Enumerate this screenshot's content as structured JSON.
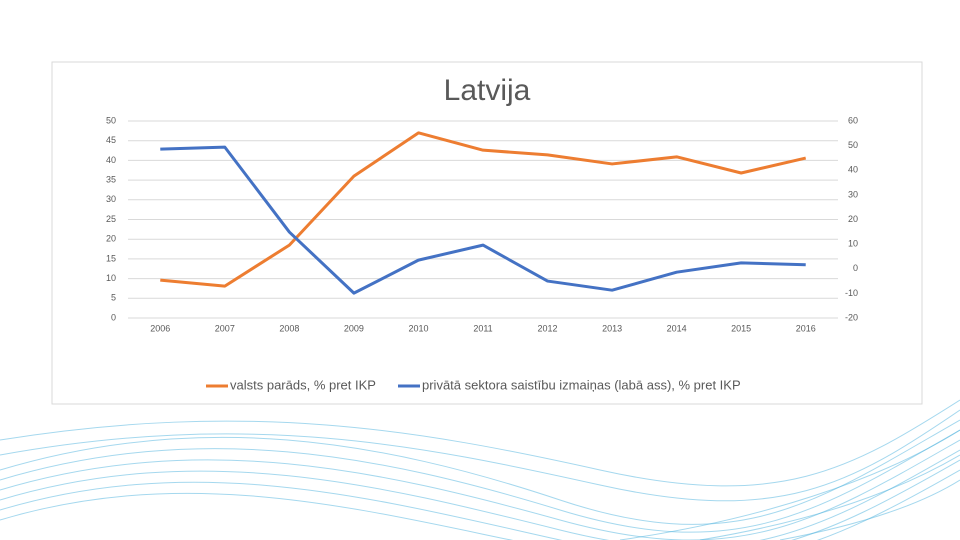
{
  "chart_data": {
    "type": "line",
    "title": "Latvija",
    "categories": [
      "2006",
      "2007",
      "2008",
      "2009",
      "2010",
      "2011",
      "2012",
      "2013",
      "2014",
      "2015",
      "2016"
    ],
    "series": [
      {
        "name": "valsts parāds, % pret IKP",
        "color": "#ed7d31",
        "values": [
          9.6,
          8.1,
          18.5,
          36.0,
          47.0,
          42.6,
          41.4,
          39.1,
          40.9,
          36.8,
          40.6
        ]
      },
      {
        "name": "privātā sektora saistību izmaiņas (labā ass), % pret IKP",
        "color": "#4472c4",
        "axis": "y2",
        "values": [
          48.6,
          49.4,
          14.9,
          -9.9,
          3.5,
          9.6,
          -5.0,
          -8.7,
          -1.4,
          2.4,
          1.6
        ]
      }
    ],
    "ylim": [
      0,
      50
    ],
    "yticks": [
      0,
      5,
      10,
      15,
      20,
      25,
      30,
      35,
      40,
      45,
      50
    ],
    "y2lim": [
      -20,
      60
    ],
    "y2ticks": [
      -20,
      -10,
      0,
      10,
      20,
      30,
      40,
      50,
      60
    ],
    "grid": true,
    "legend": "bottom"
  }
}
